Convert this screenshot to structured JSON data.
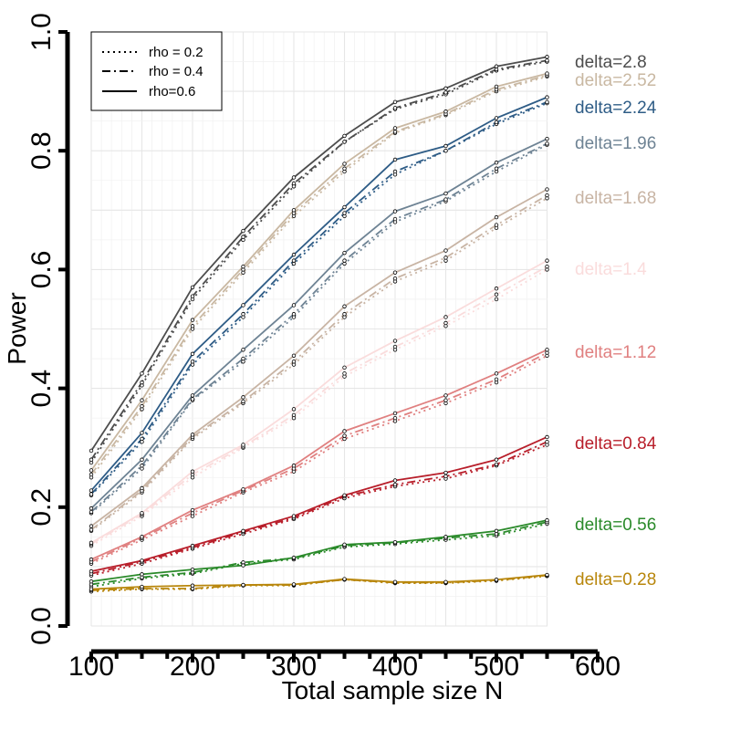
{
  "chart_data": {
    "type": "line",
    "title": "",
    "xlabel": "Total sample size N",
    "ylabel": "Power",
    "xlim": [
      100,
      600
    ],
    "ylim": [
      0.0,
      1.0
    ],
    "x_ticks": [
      100,
      200,
      300,
      400,
      500,
      600
    ],
    "y_ticks": [
      "0.0",
      "0.2",
      "0.4",
      "0.6",
      "0.8",
      "1.0"
    ],
    "grid": true,
    "legend_position": "top-left",
    "legend": [
      {
        "label": "rho = 0.2",
        "style": "dotted"
      },
      {
        "label": "rho = 0.4",
        "style": "dashdot"
      },
      {
        "label": "rho=0.6",
        "style": "solid"
      }
    ],
    "x": [
      100,
      150,
      200,
      250,
      300,
      350,
      400,
      450,
      500,
      550
    ],
    "series": [
      {
        "label": "delta=2.8",
        "color": "#4d4d4d",
        "rho_0.2": [
          0.275,
          0.405,
          0.55,
          0.65,
          0.74,
          0.815,
          0.87,
          0.895,
          0.935,
          0.95
        ],
        "rho_0.4": [
          0.28,
          0.41,
          0.555,
          0.655,
          0.745,
          0.815,
          0.872,
          0.898,
          0.937,
          0.952
        ],
        "rho_0.6": [
          0.295,
          0.425,
          0.57,
          0.665,
          0.755,
          0.825,
          0.882,
          0.905,
          0.942,
          0.958
        ]
      },
      {
        "label": "delta=2.52",
        "color": "#c9b8a2",
        "rho_0.2": [
          0.25,
          0.365,
          0.5,
          0.595,
          0.69,
          0.765,
          0.83,
          0.86,
          0.9,
          0.925
        ],
        "rho_0.4": [
          0.255,
          0.37,
          0.505,
          0.6,
          0.695,
          0.77,
          0.832,
          0.862,
          0.903,
          0.927
        ],
        "rho_0.6": [
          0.262,
          0.38,
          0.515,
          0.605,
          0.7,
          0.778,
          0.838,
          0.866,
          0.908,
          0.93
        ]
      },
      {
        "label": "delta=2.24",
        "color": "#2e5c86",
        "rho_0.2": [
          0.22,
          0.31,
          0.44,
          0.52,
          0.61,
          0.69,
          0.76,
          0.8,
          0.845,
          0.88
        ],
        "rho_0.4": [
          0.222,
          0.315,
          0.445,
          0.525,
          0.615,
          0.695,
          0.765,
          0.8,
          0.848,
          0.882
        ],
        "rho_0.6": [
          0.228,
          0.325,
          0.458,
          0.54,
          0.625,
          0.705,
          0.785,
          0.808,
          0.855,
          0.89
        ]
      },
      {
        "label": "delta=1.96",
        "color": "#6e8394",
        "rho_0.2": [
          0.19,
          0.265,
          0.38,
          0.445,
          0.52,
          0.61,
          0.68,
          0.715,
          0.765,
          0.81
        ],
        "rho_0.4": [
          0.192,
          0.27,
          0.382,
          0.45,
          0.525,
          0.615,
          0.685,
          0.718,
          0.77,
          0.812
        ],
        "rho_0.6": [
          0.198,
          0.28,
          0.388,
          0.465,
          0.54,
          0.628,
          0.698,
          0.728,
          0.78,
          0.82
        ]
      },
      {
        "label": "delta=1.68",
        "color": "#c8b4a4",
        "rho_0.2": [
          0.16,
          0.225,
          0.315,
          0.375,
          0.44,
          0.52,
          0.58,
          0.615,
          0.67,
          0.72
        ],
        "rho_0.4": [
          0.162,
          0.228,
          0.318,
          0.378,
          0.445,
          0.525,
          0.585,
          0.62,
          0.675,
          0.725
        ],
        "rho_0.6": [
          0.168,
          0.232,
          0.322,
          0.385,
          0.455,
          0.538,
          0.595,
          0.632,
          0.688,
          0.735
        ]
      },
      {
        "label": "delta=1.4",
        "color": "#fadcdc",
        "rho_0.2": [
          0.135,
          0.185,
          0.25,
          0.3,
          0.35,
          0.42,
          0.465,
          0.505,
          0.55,
          0.6
        ],
        "rho_0.4": [
          0.138,
          0.188,
          0.255,
          0.302,
          0.355,
          0.425,
          0.47,
          0.51,
          0.558,
          0.605
        ],
        "rho_0.6": [
          0.14,
          0.19,
          0.26,
          0.305,
          0.365,
          0.435,
          0.48,
          0.52,
          0.568,
          0.615
        ]
      },
      {
        "label": "delta=1.12",
        "color": "#e08080",
        "rho_0.2": [
          0.105,
          0.145,
          0.185,
          0.225,
          0.26,
          0.315,
          0.345,
          0.375,
          0.41,
          0.455
        ],
        "rho_0.4": [
          0.108,
          0.148,
          0.19,
          0.228,
          0.265,
          0.32,
          0.35,
          0.38,
          0.415,
          0.46
        ],
        "rho_0.6": [
          0.112,
          0.15,
          0.195,
          0.23,
          0.27,
          0.328,
          0.358,
          0.388,
          0.425,
          0.465
        ]
      },
      {
        "label": "delta=0.84",
        "color": "#b81e2a",
        "rho_0.2": [
          0.085,
          0.105,
          0.13,
          0.155,
          0.18,
          0.215,
          0.235,
          0.248,
          0.27,
          0.305
        ],
        "rho_0.4": [
          0.088,
          0.108,
          0.132,
          0.158,
          0.182,
          0.218,
          0.238,
          0.252,
          0.272,
          0.31
        ],
        "rho_0.6": [
          0.092,
          0.11,
          0.135,
          0.16,
          0.185,
          0.22,
          0.245,
          0.258,
          0.28,
          0.318
        ]
      },
      {
        "label": "delta=0.56",
        "color": "#2a8a2a",
        "rho_0.2": [
          0.066,
          0.08,
          0.088,
          0.105,
          0.112,
          0.133,
          0.138,
          0.145,
          0.152,
          0.172
        ],
        "rho_0.4": [
          0.07,
          0.082,
          0.09,
          0.107,
          0.114,
          0.135,
          0.14,
          0.148,
          0.155,
          0.175
        ],
        "rho_0.6": [
          0.075,
          0.087,
          0.095,
          0.102,
          0.115,
          0.137,
          0.141,
          0.15,
          0.16,
          0.178
        ]
      },
      {
        "label": "delta=0.28",
        "color": "#b8860b",
        "rho_0.2": [
          0.058,
          0.062,
          0.062,
          0.068,
          0.068,
          0.078,
          0.072,
          0.072,
          0.076,
          0.084
        ],
        "rho_0.4": [
          0.06,
          0.063,
          0.063,
          0.069,
          0.069,
          0.078,
          0.073,
          0.073,
          0.077,
          0.085
        ],
        "rho_0.6": [
          0.062,
          0.066,
          0.068,
          0.069,
          0.07,
          0.079,
          0.074,
          0.074,
          0.078,
          0.086
        ]
      }
    ]
  }
}
